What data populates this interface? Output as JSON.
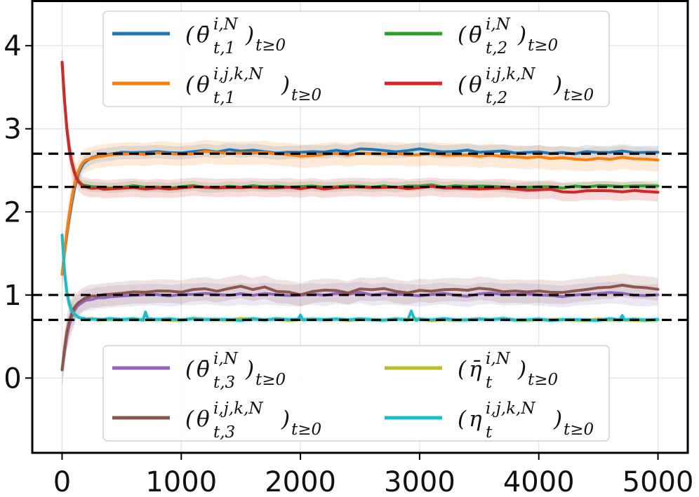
{
  "chart_data": {
    "type": "line",
    "title": "",
    "xlabel": "",
    "ylabel": "",
    "xlim": [
      -250,
      5250
    ],
    "ylim": [
      -0.9,
      4.55
    ],
    "grid": true,
    "xticks": [
      0,
      1000,
      2000,
      3000,
      4000,
      5000
    ],
    "xtick_labels": [
      "0",
      "1000",
      "2000",
      "3000",
      "4000",
      "5000"
    ],
    "yticks": [
      0,
      1,
      2,
      3,
      4
    ],
    "ytick_labels": [
      "0",
      "1",
      "2",
      "3",
      "4"
    ],
    "reference_lines": [
      2.7,
      2.3,
      1.0,
      0.7
    ],
    "legend_groups": [
      {
        "placement": "top-center",
        "items": [
          {
            "label": "(θ̄t,1i,N)t≥0",
            "color": "#1f77b4"
          },
          {
            "label": "(θ̄t,2i,N)t≥0",
            "color": "#2ca02c"
          },
          {
            "label": "(θt,1i,j,k,N)t≥0",
            "color": "#ff7f0e"
          },
          {
            "label": "(θt,2i,j,k,N)t≥0",
            "color": "#d62728"
          }
        ]
      },
      {
        "placement": "bottom-center",
        "items": [
          {
            "label": "(θ̄t,3i,N)t≥0",
            "color": "#9467bd"
          },
          {
            "label": "(η̄ti,N)t≥0",
            "color": "#bcbd22"
          },
          {
            "label": "(θt,3i,j,k,N)t≥0",
            "color": "#8c564b"
          },
          {
            "label": "(ηti,j,k,N)t≥0",
            "color": "#17becf"
          }
        ]
      }
    ],
    "series": [
      {
        "name": "(θ̄t,1i,N)t≥0",
        "color": "#1f77b4",
        "x": [
          0,
          20,
          40,
          60,
          80,
          100,
          120,
          140,
          160,
          180,
          200,
          250,
          300,
          350,
          400,
          500,
          600,
          700,
          800,
          900,
          1000,
          1100,
          1200,
          1300,
          1400,
          1500,
          1600,
          1700,
          1800,
          1900,
          2000,
          2100,
          2200,
          2300,
          2400,
          2500,
          2600,
          2700,
          2800,
          2900,
          3000,
          3100,
          3200,
          3300,
          3400,
          3500,
          3600,
          3700,
          3800,
          3900,
          4000,
          4100,
          4200,
          4300,
          4400,
          4500,
          4600,
          4700,
          4800,
          4900,
          5000
        ],
        "values": [
          1.25,
          1.5,
          1.72,
          1.92,
          2.1,
          2.25,
          2.38,
          2.47,
          2.53,
          2.58,
          2.61,
          2.65,
          2.68,
          2.69,
          2.7,
          2.71,
          2.72,
          2.71,
          2.73,
          2.72,
          2.71,
          2.72,
          2.74,
          2.72,
          2.75,
          2.73,
          2.74,
          2.73,
          2.71,
          2.72,
          2.72,
          2.73,
          2.72,
          2.74,
          2.72,
          2.76,
          2.75,
          2.74,
          2.73,
          2.74,
          2.76,
          2.74,
          2.72,
          2.73,
          2.74,
          2.71,
          2.72,
          2.73,
          2.71,
          2.71,
          2.72,
          2.7,
          2.71,
          2.7,
          2.72,
          2.71,
          2.72,
          2.73,
          2.72,
          2.71,
          2.72
        ],
        "band": 0.08
      },
      {
        "name": "(θ̄t,2i,N)t≥0",
        "color": "#2ca02c",
        "x": [
          0,
          20,
          40,
          60,
          80,
          100,
          120,
          140,
          160,
          180,
          200,
          250,
          300,
          350,
          400,
          500,
          600,
          700,
          800,
          900,
          1000,
          1100,
          1200,
          1300,
          1400,
          1500,
          1600,
          1700,
          1800,
          1900,
          2000,
          2100,
          2200,
          2300,
          2400,
          2500,
          2600,
          2700,
          2800,
          2900,
          3000,
          3100,
          3200,
          3300,
          3400,
          3500,
          3600,
          3700,
          3800,
          3900,
          4000,
          4100,
          4200,
          4300,
          4400,
          4500,
          4600,
          4700,
          4800,
          4900,
          5000
        ],
        "values": [
          3.8,
          3.35,
          3.02,
          2.78,
          2.62,
          2.5,
          2.42,
          2.37,
          2.34,
          2.32,
          2.31,
          2.3,
          2.3,
          2.29,
          2.29,
          2.3,
          2.31,
          2.29,
          2.3,
          2.29,
          2.3,
          2.31,
          2.3,
          2.29,
          2.31,
          2.3,
          2.31,
          2.3,
          2.31,
          2.3,
          2.3,
          2.31,
          2.29,
          2.3,
          2.31,
          2.31,
          2.3,
          2.31,
          2.3,
          2.31,
          2.31,
          2.32,
          2.3,
          2.31,
          2.3,
          2.31,
          2.31,
          2.3,
          2.29,
          2.3,
          2.31,
          2.3,
          2.29,
          2.31,
          2.3,
          2.31,
          2.31,
          2.3,
          2.31,
          2.31,
          2.31
        ],
        "band": 0.06
      },
      {
        "name": "(θt,1i,j,k,N)t≥0",
        "color": "#ff7f0e",
        "x": [
          0,
          20,
          40,
          60,
          80,
          100,
          120,
          140,
          160,
          180,
          200,
          250,
          300,
          350,
          400,
          500,
          600,
          700,
          800,
          900,
          1000,
          1100,
          1200,
          1300,
          1400,
          1500,
          1600,
          1700,
          1800,
          1900,
          2000,
          2100,
          2200,
          2300,
          2400,
          2500,
          2600,
          2700,
          2800,
          2900,
          3000,
          3100,
          3200,
          3300,
          3400,
          3500,
          3600,
          3700,
          3800,
          3900,
          4000,
          4100,
          4200,
          4300,
          4400,
          4500,
          4600,
          4700,
          4800,
          4900,
          5000
        ],
        "values": [
          1.25,
          1.52,
          1.76,
          1.97,
          2.15,
          2.3,
          2.42,
          2.5,
          2.56,
          2.6,
          2.62,
          2.65,
          2.66,
          2.67,
          2.68,
          2.69,
          2.7,
          2.69,
          2.71,
          2.7,
          2.69,
          2.7,
          2.72,
          2.71,
          2.7,
          2.71,
          2.71,
          2.72,
          2.7,
          2.69,
          2.67,
          2.68,
          2.69,
          2.7,
          2.69,
          2.71,
          2.7,
          2.69,
          2.7,
          2.68,
          2.69,
          2.7,
          2.68,
          2.69,
          2.68,
          2.67,
          2.69,
          2.67,
          2.66,
          2.65,
          2.66,
          2.64,
          2.65,
          2.64,
          2.63,
          2.64,
          2.63,
          2.65,
          2.64,
          2.63,
          2.63
        ],
        "band": 0.14
      },
      {
        "name": "(θt,2i,j,k,N)t≥0",
        "color": "#d62728",
        "x": [
          0,
          20,
          40,
          60,
          80,
          100,
          120,
          140,
          160,
          180,
          200,
          250,
          300,
          350,
          400,
          500,
          600,
          700,
          800,
          900,
          1000,
          1100,
          1200,
          1300,
          1400,
          1500,
          1600,
          1700,
          1800,
          1900,
          2000,
          2100,
          2200,
          2300,
          2400,
          2500,
          2600,
          2700,
          2800,
          2900,
          3000,
          3100,
          3200,
          3300,
          3400,
          3500,
          3600,
          3700,
          3800,
          3900,
          4000,
          4100,
          4200,
          4300,
          4400,
          4500,
          4600,
          4700,
          4800,
          4900,
          5000
        ],
        "values": [
          3.8,
          3.34,
          3.0,
          2.76,
          2.6,
          2.49,
          2.41,
          2.36,
          2.33,
          2.31,
          2.3,
          2.29,
          2.29,
          2.28,
          2.28,
          2.29,
          2.29,
          2.27,
          2.29,
          2.28,
          2.29,
          2.3,
          2.29,
          2.28,
          2.3,
          2.29,
          2.3,
          2.29,
          2.29,
          2.29,
          2.28,
          2.3,
          2.28,
          2.29,
          2.3,
          2.3,
          2.29,
          2.29,
          2.3,
          2.28,
          2.29,
          2.3,
          2.28,
          2.29,
          2.28,
          2.27,
          2.28,
          2.29,
          2.27,
          2.26,
          2.26,
          2.27,
          2.24,
          2.23,
          2.25,
          2.26,
          2.25,
          2.24,
          2.25,
          2.24,
          2.23
        ],
        "band": 0.11
      },
      {
        "name": "(θ̄t,3i,N)t≥0",
        "color": "#9467bd",
        "x": [
          0,
          20,
          40,
          60,
          80,
          100,
          120,
          140,
          160,
          180,
          200,
          250,
          300,
          350,
          400,
          500,
          600,
          700,
          800,
          900,
          1000,
          1100,
          1200,
          1300,
          1400,
          1500,
          1600,
          1700,
          1800,
          1900,
          2000,
          2100,
          2200,
          2300,
          2400,
          2500,
          2600,
          2700,
          2800,
          2900,
          3000,
          3100,
          3200,
          3300,
          3400,
          3500,
          3600,
          3700,
          3800,
          3900,
          4000,
          4100,
          4200,
          4300,
          4400,
          4500,
          4600,
          4700,
          4800,
          4900,
          5000
        ],
        "values": [
          0.1,
          0.32,
          0.5,
          0.63,
          0.73,
          0.8,
          0.85,
          0.88,
          0.9,
          0.92,
          0.93,
          0.95,
          0.96,
          0.97,
          0.98,
          0.99,
          1.0,
          1.01,
          1.0,
          0.99,
          1.0,
          1.01,
          1.02,
          1.0,
          0.99,
          1.01,
          1.0,
          1.02,
          1.0,
          0.99,
          1.0,
          1.01,
          1.0,
          1.02,
          1.01,
          1.03,
          1.0,
          1.02,
          1.01,
          1.0,
          0.99,
          1.01,
          1.02,
          1.0,
          0.99,
          1.01,
          1.02,
          1.0,
          1.01,
          1.02,
          1.0,
          0.99,
          0.98,
          1.0,
          1.01,
          1.02,
          1.03,
          1.02,
          1.0,
          0.99,
          1.0
        ],
        "band": 0.13
      },
      {
        "name": "(η̄ti,N)t≥0",
        "color": "#bcbd22",
        "x": [
          0,
          20,
          40,
          60,
          80,
          100,
          120,
          140,
          160,
          180,
          200,
          250,
          300,
          350,
          400,
          500,
          600,
          700,
          800,
          900,
          1000,
          1100,
          1200,
          1300,
          1400,
          1500,
          1600,
          1700,
          1800,
          1900,
          2000,
          2100,
          2200,
          2300,
          2400,
          2500,
          2600,
          2700,
          2800,
          2900,
          3000,
          3100,
          3200,
          3300,
          3400,
          3500,
          3600,
          3700,
          3800,
          3900,
          4000,
          4100,
          4200,
          4300,
          4400,
          4500,
          4600,
          4700,
          4800,
          4900,
          5000
        ],
        "values": [
          1.72,
          1.3,
          1.05,
          0.91,
          0.83,
          0.78,
          0.75,
          0.73,
          0.72,
          0.71,
          0.71,
          0.71,
          0.7,
          0.7,
          0.71,
          0.7,
          0.71,
          0.7,
          0.71,
          0.7,
          0.7,
          0.71,
          0.7,
          0.71,
          0.7,
          0.71,
          0.7,
          0.7,
          0.71,
          0.7,
          0.71,
          0.7,
          0.7,
          0.71,
          0.7,
          0.71,
          0.7,
          0.7,
          0.71,
          0.7,
          0.72,
          0.7,
          0.71,
          0.7,
          0.7,
          0.71,
          0.7,
          0.71,
          0.7,
          0.7,
          0.71,
          0.7,
          0.71,
          0.7,
          0.7,
          0.71,
          0.7,
          0.71,
          0.7,
          0.7,
          0.7
        ],
        "band": 0.03
      },
      {
        "name": "(θt,3i,j,k,N)t≥0",
        "color": "#8c564b",
        "x": [
          0,
          20,
          40,
          60,
          80,
          100,
          120,
          140,
          160,
          180,
          200,
          250,
          300,
          350,
          400,
          500,
          600,
          700,
          800,
          900,
          1000,
          1100,
          1200,
          1300,
          1400,
          1500,
          1600,
          1700,
          1800,
          1900,
          2000,
          2100,
          2200,
          2300,
          2400,
          2500,
          2600,
          2700,
          2800,
          2900,
          3000,
          3100,
          3200,
          3300,
          3400,
          3500,
          3600,
          3700,
          3800,
          3900,
          4000,
          4100,
          4200,
          4300,
          4400,
          4500,
          4600,
          4700,
          4800,
          4900,
          5000
        ],
        "values": [
          0.1,
          0.35,
          0.55,
          0.68,
          0.77,
          0.84,
          0.88,
          0.91,
          0.93,
          0.95,
          0.96,
          0.98,
          0.99,
          1.0,
          1.01,
          1.02,
          1.04,
          1.03,
          1.05,
          1.04,
          1.03,
          1.06,
          1.07,
          1.05,
          1.08,
          1.1,
          1.06,
          1.09,
          1.05,
          1.03,
          1.0,
          1.04,
          1.06,
          1.05,
          1.03,
          1.08,
          1.06,
          1.07,
          1.04,
          1.03,
          1.05,
          1.04,
          1.06,
          1.07,
          1.05,
          1.08,
          1.06,
          1.04,
          1.05,
          1.03,
          1.05,
          1.04,
          1.03,
          1.05,
          1.06,
          1.08,
          1.1,
          1.12,
          1.1,
          1.09,
          1.07
        ],
        "band": 0.14
      },
      {
        "name": "(ηti,j,k,N)t≥0",
        "color": "#17becf",
        "x": [
          0,
          20,
          40,
          60,
          80,
          100,
          120,
          140,
          160,
          180,
          200,
          250,
          300,
          350,
          400,
          500,
          600,
          680,
          700,
          720,
          800,
          900,
          1000,
          1100,
          1200,
          1300,
          1400,
          1500,
          1600,
          1700,
          1800,
          1900,
          1980,
          2000,
          2020,
          2100,
          2200,
          2300,
          2400,
          2500,
          2600,
          2700,
          2800,
          2900,
          2930,
          2950,
          2970,
          3000,
          3100,
          3200,
          3300,
          3400,
          3500,
          3600,
          3700,
          3800,
          3900,
          4000,
          4100,
          4200,
          4300,
          4400,
          4500,
          4600,
          4680,
          4700,
          4720,
          4800,
          4900,
          5000
        ],
        "values": [
          1.72,
          1.28,
          1.03,
          0.89,
          0.81,
          0.77,
          0.75,
          0.73,
          0.72,
          0.72,
          0.71,
          0.71,
          0.71,
          0.7,
          0.71,
          0.7,
          0.71,
          0.7,
          0.79,
          0.71,
          0.7,
          0.71,
          0.7,
          0.71,
          0.7,
          0.71,
          0.7,
          0.7,
          0.71,
          0.7,
          0.71,
          0.7,
          0.7,
          0.76,
          0.7,
          0.71,
          0.7,
          0.71,
          0.7,
          0.71,
          0.7,
          0.7,
          0.71,
          0.7,
          0.81,
          0.74,
          0.7,
          0.71,
          0.7,
          0.71,
          0.7,
          0.7,
          0.71,
          0.7,
          0.71,
          0.7,
          0.7,
          0.71,
          0.7,
          0.7,
          0.71,
          0.7,
          0.7,
          0.71,
          0.7,
          0.76,
          0.7,
          0.71,
          0.7,
          0.7
        ],
        "band": 0.035
      }
    ]
  }
}
